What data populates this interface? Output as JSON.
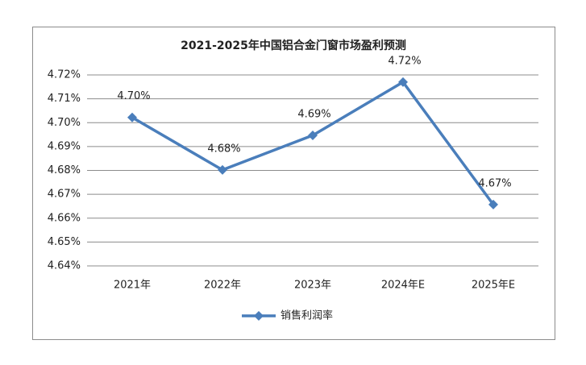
{
  "chart_data": {
    "type": "line",
    "title": "2021-2025年中国铝合金门窗市场盈利预测",
    "categories": [
      "2021年",
      "2022年",
      "2023年",
      "2024年E",
      "2025年E"
    ],
    "series": [
      {
        "name": "销售利润率",
        "color": "#4a7ebb",
        "values": [
          4.7022,
          4.6802,
          4.6947,
          4.717,
          4.6657
        ],
        "value_labels": [
          "4.70%",
          "4.68%",
          "4.69%",
          "4.72%",
          "4.67%"
        ]
      }
    ],
    "ylim": [
      4.64,
      4.72
    ],
    "yticks": [
      {
        "value": 4.64,
        "label": "4.64%"
      },
      {
        "value": 4.65,
        "label": "4.65%"
      },
      {
        "value": 4.66,
        "label": "4.66%"
      },
      {
        "value": 4.67,
        "label": "4.67%"
      },
      {
        "value": 4.68,
        "label": "4.68%"
      },
      {
        "value": 4.69,
        "label": "4.69%"
      },
      {
        "value": 4.7,
        "label": "4.70%"
      },
      {
        "value": 4.71,
        "label": "4.71%"
      },
      {
        "value": 4.72,
        "label": "4.72%"
      }
    ],
    "grid": true,
    "legend": "bottom"
  }
}
